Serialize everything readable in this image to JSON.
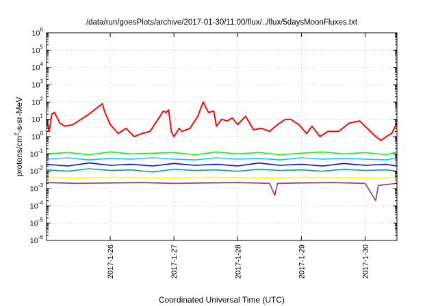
{
  "chart_data": {
    "type": "line",
    "title": "/data/run/goesPlots/archive/2017-01-30/11:00/flux/../flux/5daysMoonFluxes.txt",
    "xlabel": "Coordinated Universal Time (UTC)",
    "ylabel": {
      "base": "protons/cm",
      "sup": "2",
      "rest": "-s-sr-MeV"
    },
    "y_scale": "log",
    "ylim": [
      1e-06,
      1000000.0
    ],
    "y_ticks": [
      {
        "exp": "-6",
        "value": 1e-06
      },
      {
        "exp": "-5",
        "value": 1e-05
      },
      {
        "exp": "-4",
        "value": 0.0001
      },
      {
        "exp": "-3",
        "value": 0.001
      },
      {
        "exp": "-2",
        "value": 0.01
      },
      {
        "exp": "-1",
        "value": 0.1
      },
      {
        "exp": "0",
        "value": 1
      },
      {
        "exp": "1",
        "value": 10.0
      },
      {
        "exp": "2",
        "value": 100.0
      },
      {
        "exp": "3",
        "value": 1000.0
      },
      {
        "exp": "4",
        "value": 10000.0
      },
      {
        "exp": "5",
        "value": 100000.0
      },
      {
        "exp": "6",
        "value": 1000000.0
      }
    ],
    "xlim": [
      "2017-01-25T00:00",
      "2017-01-30T12:00"
    ],
    "x_ticks": [
      {
        "label": "2017-1-26",
        "value": "2017-01-26T00:00"
      },
      {
        "label": "2017-1-27",
        "value": "2017-01-27T00:00"
      },
      {
        "label": "2017-1-28",
        "value": "2017-01-28T00:00"
      },
      {
        "label": "2017-1-29",
        "value": "2017-01-29T00:00"
      },
      {
        "label": "2017-1-30",
        "value": "2017-01-30T00:00"
      }
    ],
    "grid": true,
    "legend": "none",
    "series": [
      {
        "color": "#ff0000",
        "x": [
          "2017-01-25T00:00",
          "2017-01-25T01:00",
          "2017-01-25T02:00",
          "2017-01-25T03:00",
          "2017-01-25T05:00",
          "2017-01-25T07:00",
          "2017-01-25T10:00",
          "2017-01-25T13:00",
          "2017-01-25T16:00",
          "2017-01-25T20:00",
          "2017-01-25T21:00",
          "2017-01-25T22:00",
          "2017-01-26T00:00",
          "2017-01-26T03:00",
          "2017-01-26T06:00",
          "2017-01-26T09:00",
          "2017-01-26T12:00",
          "2017-01-26T15:00",
          "2017-01-26T18:00",
          "2017-01-26T20:00",
          "2017-01-26T21:00",
          "2017-01-26T22:00",
          "2017-01-26T23:00",
          "2017-01-27T00:00",
          "2017-01-27T02:00",
          "2017-01-27T03:00",
          "2017-01-27T06:00",
          "2017-01-27T09:00",
          "2017-01-27T11:00",
          "2017-01-27T13:00",
          "2017-01-27T15:00",
          "2017-01-27T16:00",
          "2017-01-27T18:00",
          "2017-01-27T20:00",
          "2017-01-27T22:00",
          "2017-01-28T00:00",
          "2017-01-28T03:00",
          "2017-01-28T06:00",
          "2017-01-28T09:00",
          "2017-01-28T12:00",
          "2017-01-28T15:00",
          "2017-01-28T18:00",
          "2017-01-28T20:00",
          "2017-01-28T23:00",
          "2017-01-29T02:00",
          "2017-01-29T04:00",
          "2017-01-29T07:00",
          "2017-01-29T10:00",
          "2017-01-29T14:00",
          "2017-01-29T18:00",
          "2017-01-29T22:00",
          "2017-01-30T02:00",
          "2017-01-30T04:00",
          "2017-01-30T06:00",
          "2017-01-30T08:00",
          "2017-01-30T10:00",
          "2017-01-30T12:00"
        ],
        "y": [
          10,
          2,
          20,
          25,
          6,
          4,
          5,
          10,
          20,
          60,
          80,
          25,
          5,
          1.5,
          3,
          1,
          1.5,
          2,
          10,
          30,
          25,
          35,
          2,
          1,
          3,
          2,
          3,
          15,
          100,
          25,
          30,
          4,
          10,
          8,
          12,
          5,
          15,
          2.5,
          3,
          2,
          5,
          10,
          10,
          5,
          1.5,
          4,
          1,
          2,
          2,
          6,
          8,
          2,
          1,
          0.6,
          1,
          1.5,
          6
        ]
      },
      {
        "color": "#00ff00",
        "x": [
          "2017-01-25T00:00",
          "2017-01-25T08:00",
          "2017-01-25T16:00",
          "2017-01-26T00:00",
          "2017-01-26T08:00",
          "2017-01-26T16:00",
          "2017-01-27T00:00",
          "2017-01-27T08:00",
          "2017-01-27T16:00",
          "2017-01-28T00:00",
          "2017-01-28T08:00",
          "2017-01-28T16:00",
          "2017-01-29T00:00",
          "2017-01-29T08:00",
          "2017-01-29T16:00",
          "2017-01-30T00:00",
          "2017-01-30T08:00",
          "2017-01-30T12:00"
        ],
        "y": [
          0.1,
          0.12,
          0.09,
          0.13,
          0.1,
          0.11,
          0.12,
          0.09,
          0.13,
          0.1,
          0.12,
          0.09,
          0.11,
          0.13,
          0.1,
          0.12,
          0.09,
          0.13
        ]
      },
      {
        "color": "#00ccff",
        "x": [
          "2017-01-25T00:00",
          "2017-01-25T08:00",
          "2017-01-25T16:00",
          "2017-01-26T00:00",
          "2017-01-26T08:00",
          "2017-01-26T16:00",
          "2017-01-27T00:00",
          "2017-01-27T08:00",
          "2017-01-27T16:00",
          "2017-01-28T00:00",
          "2017-01-28T08:00",
          "2017-01-28T16:00",
          "2017-01-29T00:00",
          "2017-01-29T08:00",
          "2017-01-29T16:00",
          "2017-01-30T00:00",
          "2017-01-30T08:00",
          "2017-01-30T12:00"
        ],
        "y": [
          0.05,
          0.06,
          0.045,
          0.055,
          0.05,
          0.06,
          0.05,
          0.045,
          0.06,
          0.05,
          0.055,
          0.045,
          0.06,
          0.05,
          0.055,
          0.05,
          0.045,
          0.06
        ]
      },
      {
        "color": "#0000ff",
        "x": [
          "2017-01-25T00:00",
          "2017-01-25T08:00",
          "2017-01-25T16:00",
          "2017-01-26T00:00",
          "2017-01-26T08:00",
          "2017-01-26T16:00",
          "2017-01-27T00:00",
          "2017-01-27T08:00",
          "2017-01-27T16:00",
          "2017-01-28T00:00",
          "2017-01-28T08:00",
          "2017-01-28T16:00",
          "2017-01-29T00:00",
          "2017-01-29T08:00",
          "2017-01-29T16:00",
          "2017-01-30T00:00",
          "2017-01-30T08:00",
          "2017-01-30T12:00"
        ],
        "y": [
          0.025,
          0.02,
          0.03,
          0.022,
          0.025,
          0.02,
          0.028,
          0.022,
          0.025,
          0.02,
          0.03,
          0.022,
          0.025,
          0.02,
          0.028,
          0.022,
          0.025,
          0.02
        ]
      },
      {
        "color": "#00a0a0",
        "x": [
          "2017-01-25T00:00",
          "2017-01-25T08:00",
          "2017-01-25T16:00",
          "2017-01-26T00:00",
          "2017-01-26T08:00",
          "2017-01-26T16:00",
          "2017-01-27T00:00",
          "2017-01-27T08:00",
          "2017-01-27T16:00",
          "2017-01-28T00:00",
          "2017-01-28T08:00",
          "2017-01-28T16:00",
          "2017-01-29T00:00",
          "2017-01-29T08:00",
          "2017-01-29T16:00",
          "2017-01-30T00:00",
          "2017-01-30T08:00",
          "2017-01-30T12:00"
        ],
        "y": [
          0.012,
          0.01,
          0.014,
          0.011,
          0.012,
          0.009,
          0.013,
          0.011,
          0.012,
          0.01,
          0.013,
          0.011,
          0.012,
          0.01,
          0.013,
          0.011,
          0.012,
          0.01
        ]
      },
      {
        "color": "#ffff00",
        "x": [
          "2017-01-25T00:00",
          "2017-01-25T12:00",
          "2017-01-26T00:00",
          "2017-01-26T12:00",
          "2017-01-27T00:00",
          "2017-01-27T12:00",
          "2017-01-28T00:00",
          "2017-01-28T12:00",
          "2017-01-29T00:00",
          "2017-01-29T12:00",
          "2017-01-30T00:00",
          "2017-01-30T12:00"
        ],
        "y": [
          0.0045,
          0.0042,
          0.0045,
          0.0044,
          0.0042,
          0.0045,
          0.0044,
          0.0042,
          0.0045,
          0.0044,
          0.0042,
          0.0045
        ]
      },
      {
        "color": "#993366",
        "x": [
          "2017-01-25T00:00",
          "2017-01-25T12:00",
          "2017-01-26T00:00",
          "2017-01-26T12:00",
          "2017-01-27T00:00",
          "2017-01-27T12:00",
          "2017-01-28T00:00",
          "2017-01-28T12:00",
          "2017-01-28T14:00",
          "2017-01-28T15:00",
          "2017-01-29T00:00",
          "2017-01-29T12:00",
          "2017-01-30T00:00",
          "2017-01-30T04:00",
          "2017-01-30T05:00",
          "2017-01-30T12:00"
        ],
        "y": [
          0.0022,
          0.002,
          0.0021,
          0.0022,
          0.002,
          0.0021,
          0.0022,
          0.002,
          0.0004,
          0.002,
          0.0021,
          0.0022,
          0.002,
          0.0002,
          0.0015,
          0.002
        ]
      }
    ]
  }
}
